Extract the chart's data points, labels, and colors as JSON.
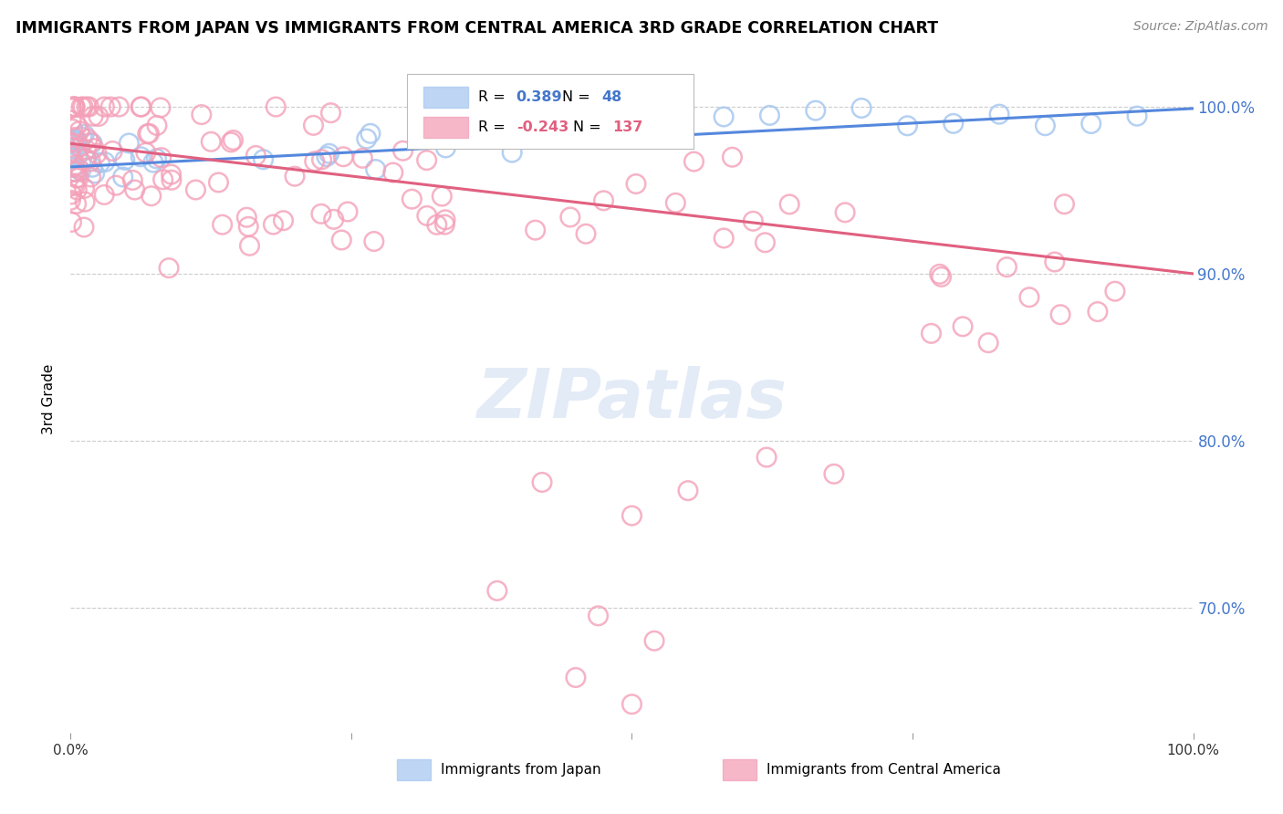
{
  "title": "IMMIGRANTS FROM JAPAN VS IMMIGRANTS FROM CENTRAL AMERICA 3RD GRADE CORRELATION CHART",
  "source": "Source: ZipAtlas.com",
  "ylabel": "3rd Grade",
  "blue_R": 0.389,
  "blue_N": 48,
  "pink_R": -0.243,
  "pink_N": 137,
  "blue_color": "#A8C8F0",
  "pink_color": "#F4A0B8",
  "blue_line_color": "#5588DD",
  "pink_line_color": "#E06080",
  "grid_color": "#CCCCCC",
  "ytick_color": "#4477CC",
  "xlim": [
    0.0,
    1.0
  ],
  "ylim": [
    0.625,
    1.025
  ],
  "yticks": [
    0.7,
    0.8,
    0.9,
    1.0
  ],
  "ytick_labels": [
    "70.0%",
    "80.0%",
    "90.0%",
    "100.0%"
  ],
  "blue_line_x0": 0.0,
  "blue_line_y0": 0.964,
  "blue_line_x1": 1.0,
  "blue_line_y1": 0.999,
  "pink_line_x0": 0.0,
  "pink_line_y0": 0.978,
  "pink_line_x1": 1.0,
  "pink_line_y1": 0.9
}
